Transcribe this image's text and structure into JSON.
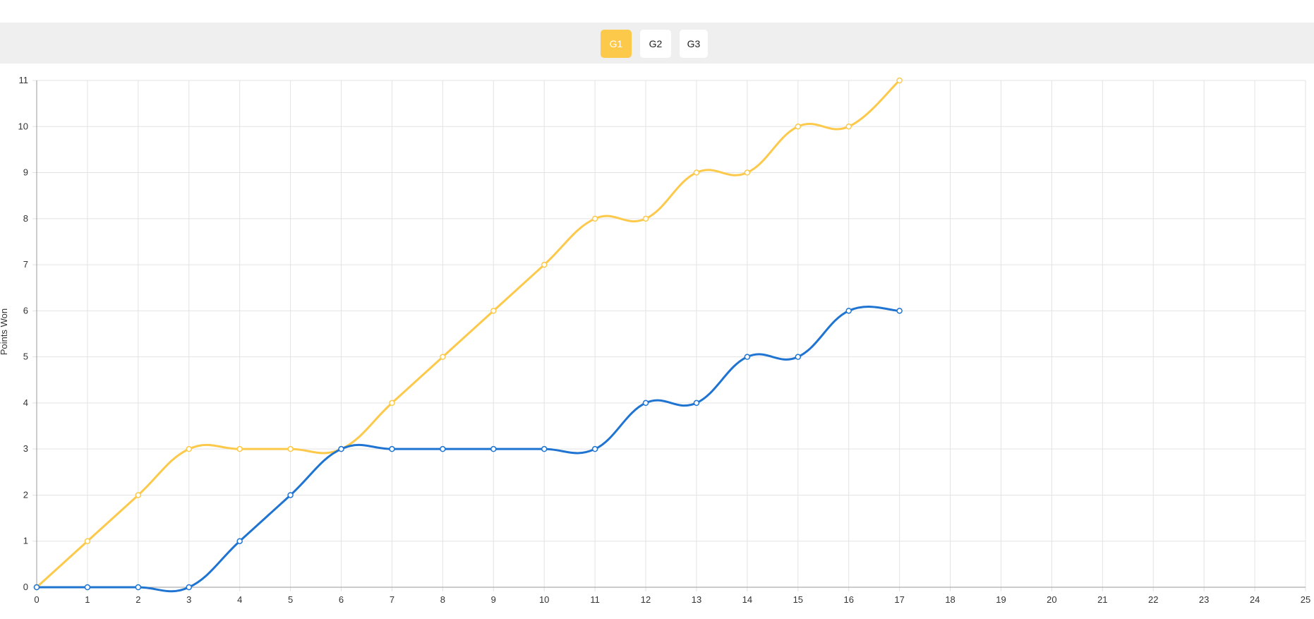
{
  "tabs": [
    {
      "label": "G1",
      "active": true
    },
    {
      "label": "G2",
      "active": false
    },
    {
      "label": "G3",
      "active": false
    }
  ],
  "colors": {
    "accent": "#fcc94b",
    "series1": "#fcc94b",
    "series2": "#1f74d2",
    "grid": "#e3e3e3",
    "tabbar": "#efefef"
  },
  "chart_data": {
    "type": "line",
    "title": "",
    "xlabel": "",
    "ylabel": "Points Won",
    "xlim": [
      0,
      25
    ],
    "ylim": [
      0,
      11
    ],
    "grid": true,
    "x": [
      0,
      1,
      2,
      3,
      4,
      5,
      6,
      7,
      8,
      9,
      10,
      11,
      12,
      13,
      14,
      15,
      16,
      17
    ],
    "series": [
      {
        "color": "#fcc94b",
        "values": [
          0,
          1,
          2,
          3,
          3,
          3,
          3,
          4,
          5,
          6,
          7,
          8,
          8,
          9,
          9,
          10,
          10,
          11
        ]
      },
      {
        "color": "#1f74d2",
        "values": [
          0,
          0,
          0,
          0,
          1,
          2,
          3,
          3,
          3,
          3,
          3,
          3,
          4,
          4,
          5,
          5,
          6,
          6
        ]
      }
    ]
  }
}
